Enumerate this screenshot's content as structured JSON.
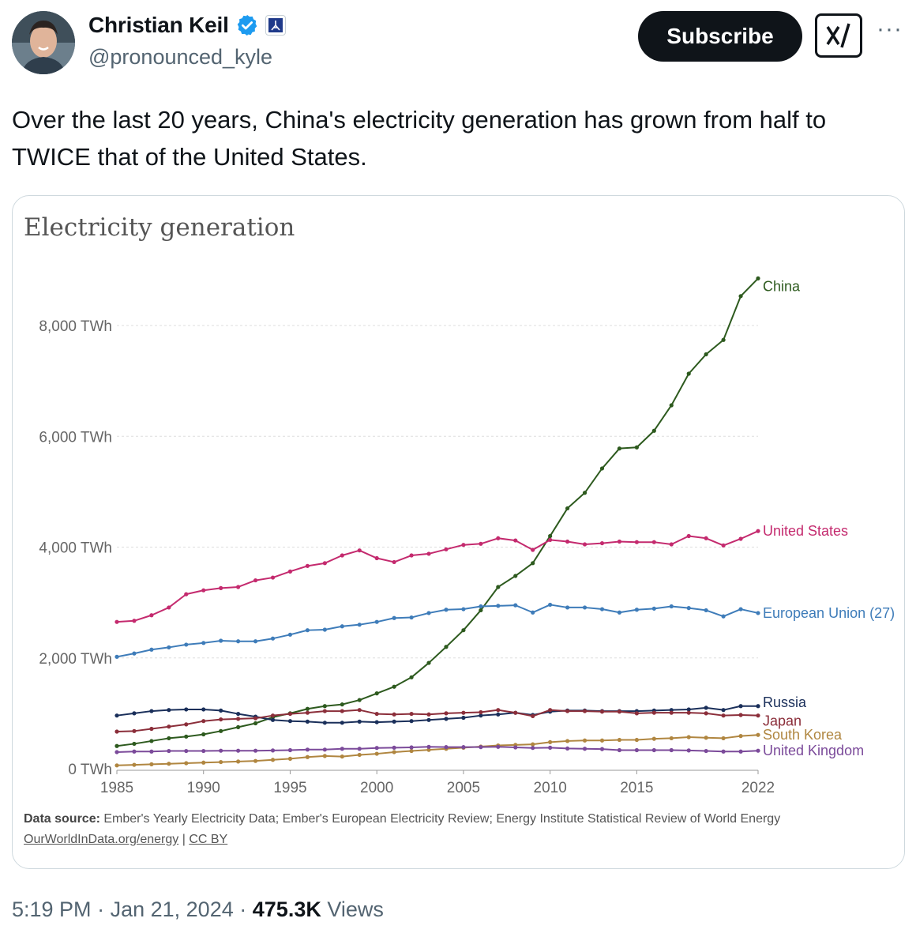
{
  "author": {
    "name": "Christian Keil",
    "handle": "@pronounced_kyle"
  },
  "actions": {
    "subscribe_label": "Subscribe",
    "more_label": "···"
  },
  "tweet": {
    "text": "Over the last 20 years, China's electricity generation has grown from half to TWICE that of the United States."
  },
  "meta": {
    "time": "5:19 PM",
    "sep1": "·",
    "date": "Jan 21, 2024",
    "sep2": "·",
    "views_count": "475.3K",
    "views_label": "Views"
  },
  "source": {
    "label": "Data source:",
    "text": "Ember's Yearly Electricity Data; Ember's European Electricity Review; Energy Institute Statistical Review of World Energy",
    "link1": "OurWorldInData.org/energy",
    "divider": "|",
    "link2": "CC BY"
  },
  "chart_data": {
    "type": "line",
    "title": "Electricity generation",
    "x": [
      1985,
      1986,
      1987,
      1988,
      1989,
      1990,
      1991,
      1992,
      1993,
      1994,
      1995,
      1996,
      1997,
      1998,
      1999,
      2000,
      2001,
      2002,
      2003,
      2004,
      2005,
      2006,
      2007,
      2008,
      2009,
      2010,
      2011,
      2012,
      2013,
      2014,
      2015,
      2016,
      2017,
      2018,
      2019,
      2020,
      2021,
      2022
    ],
    "xlim": [
      1985,
      2022
    ],
    "ylim": [
      0,
      8800
    ],
    "x_ticks": [
      1985,
      1990,
      1995,
      2000,
      2005,
      2010,
      2015,
      2022
    ],
    "y_ticks": [
      0,
      2000,
      4000,
      6000,
      8000
    ],
    "y_tick_labels": [
      "0 TWh",
      "2,000 TWh",
      "4,000 TWh",
      "6,000 TWh",
      "8,000 TWh"
    ],
    "grid": "horizontal dashed",
    "legend": "inline labels at right end of lines",
    "series": [
      {
        "name": "China",
        "color": "#2d5a1e",
        "values": [
          410,
          450,
          500,
          550,
          580,
          620,
          680,
          750,
          820,
          930,
          1000,
          1080,
          1130,
          1160,
          1240,
          1360,
          1480,
          1650,
          1910,
          2200,
          2500,
          2860,
          3280,
          3480,
          3710,
          4200,
          4700,
          4980,
          5420,
          5780,
          5800,
          6100,
          6560,
          7130,
          7480,
          7740,
          8530,
          8850
        ]
      },
      {
        "name": "United States",
        "color": "#c42a6e",
        "values": [
          2650,
          2670,
          2770,
          2910,
          3150,
          3220,
          3260,
          3280,
          3400,
          3450,
          3560,
          3660,
          3710,
          3850,
          3940,
          3800,
          3730,
          3850,
          3880,
          3960,
          4040,
          4060,
          4160,
          4120,
          3950,
          4130,
          4100,
          4050,
          4070,
          4100,
          4090,
          4090,
          4050,
          4200,
          4160,
          4030,
          4150,
          4290
        ]
      },
      {
        "name": "European Union (27)",
        "color": "#3e7cb9",
        "values": [
          2020,
          2080,
          2150,
          2190,
          2240,
          2270,
          2310,
          2300,
          2300,
          2350,
          2420,
          2500,
          2510,
          2570,
          2600,
          2650,
          2720,
          2730,
          2810,
          2870,
          2880,
          2930,
          2940,
          2950,
          2820,
          2960,
          2910,
          2910,
          2880,
          2820,
          2870,
          2890,
          2930,
          2900,
          2860,
          2750,
          2880,
          2810
        ]
      },
      {
        "name": "Russia",
        "color": "#1a2f5a",
        "values": [
          960,
          1000,
          1040,
          1060,
          1070,
          1070,
          1050,
          990,
          940,
          880,
          860,
          850,
          830,
          830,
          850,
          840,
          850,
          860,
          880,
          900,
          920,
          960,
          980,
          1010,
          970,
          1030,
          1050,
          1050,
          1040,
          1040,
          1040,
          1050,
          1060,
          1070,
          1100,
          1060,
          1130,
          1130
        ]
      },
      {
        "name": "Japan",
        "color": "#8b2e3a",
        "values": [
          670,
          680,
          720,
          760,
          800,
          860,
          890,
          900,
          910,
          960,
          990,
          1010,
          1040,
          1040,
          1060,
          990,
          980,
          990,
          980,
          1000,
          1010,
          1020,
          1060,
          1010,
          950,
          1060,
          1040,
          1040,
          1030,
          1030,
          1000,
          1010,
          1010,
          1010,
          1000,
          960,
          970,
          960
        ]
      },
      {
        "name": "South Korea",
        "color": "#b08640",
        "values": [
          60,
          70,
          80,
          90,
          100,
          110,
          120,
          130,
          140,
          160,
          180,
          210,
          230,
          220,
          250,
          270,
          300,
          320,
          340,
          360,
          380,
          400,
          420,
          430,
          440,
          480,
          500,
          510,
          510,
          520,
          520,
          540,
          550,
          570,
          560,
          550,
          590,
          610
        ]
      },
      {
        "name": "United Kingdom",
        "color": "#7b4a9a",
        "values": [
          300,
          310,
          310,
          320,
          320,
          320,
          325,
          325,
          325,
          330,
          335,
          345,
          345,
          360,
          360,
          375,
          380,
          385,
          395,
          390,
          390,
          390,
          395,
          385,
          375,
          380,
          365,
          360,
          355,
          335,
          335,
          335,
          335,
          330,
          320,
          310,
          310,
          325
        ]
      }
    ]
  }
}
